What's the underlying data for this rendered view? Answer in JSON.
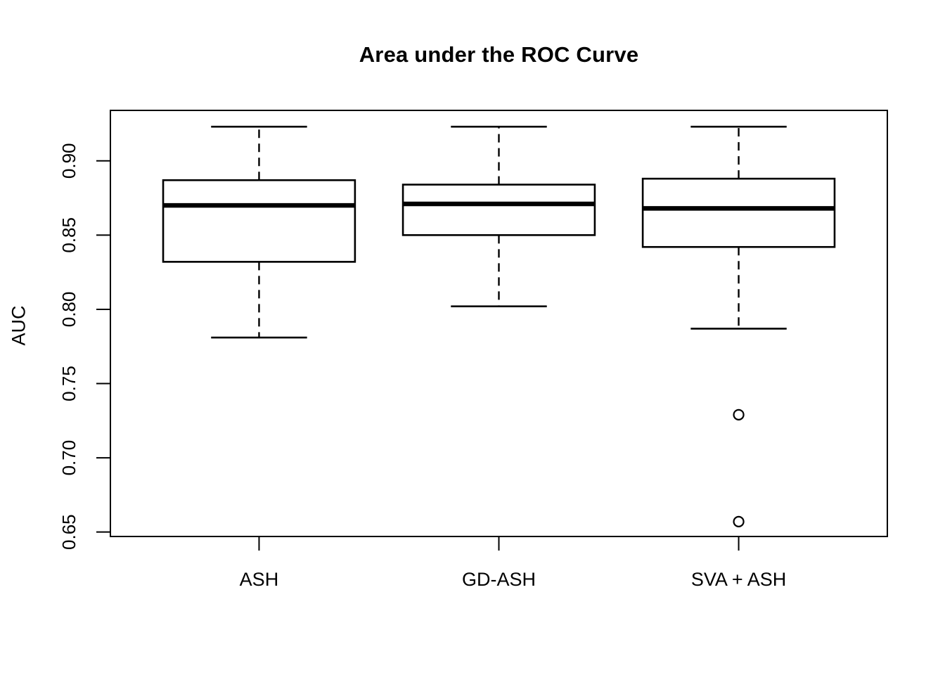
{
  "chart_data": {
    "type": "boxplot",
    "title": "Area under the ROC Curve",
    "ylabel": "AUC",
    "xlabel": "",
    "categories": [
      "ASH",
      "GD-ASH",
      "SVA + ASH"
    ],
    "ytick_values": [
      0.65,
      0.7,
      0.75,
      0.8,
      0.85,
      0.9
    ],
    "ytick_labels": [
      "0.65",
      "0.70",
      "0.75",
      "0.80",
      "0.85",
      "0.90"
    ],
    "ylim": [
      0.647,
      0.934
    ],
    "grid": false,
    "legend": null,
    "series": [
      {
        "name": "ASH",
        "whisker_low": 0.781,
        "q1": 0.832,
        "median": 0.87,
        "q3": 0.887,
        "whisker_high": 0.923,
        "outliers": []
      },
      {
        "name": "GD-ASH",
        "whisker_low": 0.802,
        "q1": 0.85,
        "median": 0.871,
        "q3": 0.884,
        "whisker_high": 0.923,
        "outliers": []
      },
      {
        "name": "SVA + ASH",
        "whisker_low": 0.787,
        "q1": 0.842,
        "median": 0.868,
        "q3": 0.888,
        "whisker_high": 0.923,
        "outliers": [
          0.729,
          0.657
        ]
      }
    ],
    "colors": {
      "stroke": "#000000",
      "box_fill": "#ffffff",
      "background": "#ffffff"
    }
  }
}
